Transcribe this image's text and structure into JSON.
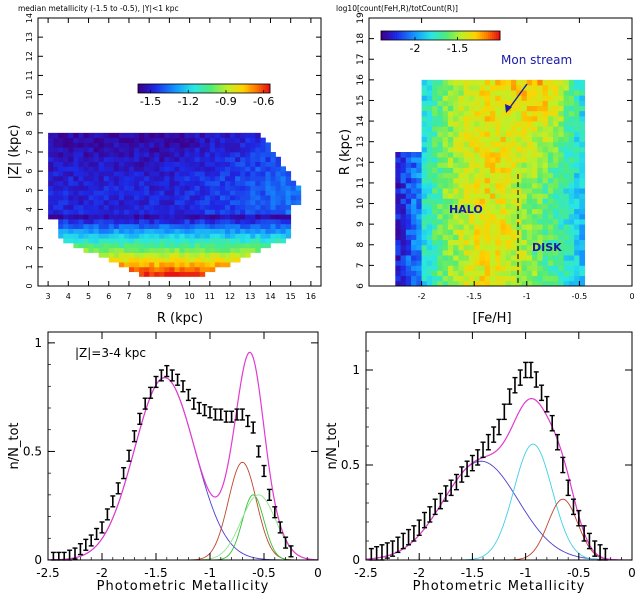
{
  "chart_data": [
    {
      "type": "heatmap",
      "title": "median metallicity (-1.5 to -0.5), |Y|<1 kpc",
      "xlabel": "R (kpc)",
      "ylabel": "|Z| (kpc)",
      "xlim": [
        2.5,
        16.5
      ],
      "ylim": [
        0,
        14
      ],
      "xticks": [
        "3",
        "4",
        "5",
        "6",
        "7",
        "8",
        "9",
        "10",
        "11",
        "12",
        "13",
        "14",
        "15",
        "16"
      ],
      "yticks": [
        "0",
        "1",
        "2",
        "3",
        "4",
        "5",
        "6",
        "7",
        "8",
        "9",
        "10",
        "11",
        "12",
        "13",
        "14"
      ],
      "colorbar": {
        "range": [
          -1.6,
          -0.55
        ],
        "ticks": [
          "-1.5",
          "-1.2",
          "-0.9",
          "-0.6"
        ]
      },
      "grid": false
    },
    {
      "type": "heatmap",
      "title": "log10[count(FeH,R)/totCount(R)]",
      "xlabel": "[Fe/H]",
      "ylabel": "R (kpc)",
      "xlim": [
        -2.5,
        0
      ],
      "ylim": [
        6,
        19
      ],
      "xticks": [
        "-2",
        "-1.5",
        "-1",
        "-0.5",
        "0"
      ],
      "yticks": [
        "6",
        "7",
        "8",
        "9",
        "10",
        "11",
        "12",
        "13",
        "14",
        "15",
        "16",
        "17",
        "18",
        "19"
      ],
      "colorbar": {
        "range": [
          -2.4,
          -1.0
        ],
        "ticks": [
          "-2",
          "-1.5"
        ]
      },
      "annotations": [
        "Mon stream",
        "HALO",
        "DISK"
      ],
      "grid": false
    },
    {
      "type": "line",
      "annotation": "|Z|=3-4 kpc",
      "xlabel": "Photometric Metallicity",
      "ylabel": "n/N_tot",
      "xlim": [
        -2.5,
        0
      ],
      "ylim": [
        0,
        1.05
      ],
      "xticks": [
        "-2.5",
        "-2",
        "-1.5",
        "-1",
        "-0.5",
        "0"
      ],
      "yticks": [
        "0",
        "0.5",
        "1"
      ],
      "x": [
        -2.45,
        -2.4,
        -2.35,
        -2.3,
        -2.25,
        -2.2,
        -2.15,
        -2.1,
        -2.05,
        -2.0,
        -1.95,
        -1.9,
        -1.85,
        -1.8,
        -1.75,
        -1.7,
        -1.65,
        -1.6,
        -1.55,
        -1.5,
        -1.45,
        -1.4,
        -1.35,
        -1.3,
        -1.25,
        -1.2,
        -1.15,
        -1.1,
        -1.05,
        -1.0,
        -0.95,
        -0.9,
        -0.85,
        -0.8,
        -0.75,
        -0.7,
        -0.65,
        -0.6,
        -0.55,
        -0.5,
        -0.45,
        -0.4,
        -0.35,
        -0.3,
        -0.25
      ],
      "series": [
        {
          "values": [
            0.01,
            0.01,
            0.01,
            0.02,
            0.03,
            0.05,
            0.07,
            0.09,
            0.12,
            0.15,
            0.21,
            0.27,
            0.33,
            0.4,
            0.48,
            0.57,
            0.65,
            0.72,
            0.77,
            0.82,
            0.85,
            0.87,
            0.85,
            0.83,
            0.8,
            0.76,
            0.72,
            0.7,
            0.69,
            0.68,
            0.67,
            0.67,
            0.66,
            0.66,
            0.67,
            0.67,
            0.64,
            0.61,
            0.5,
            0.41,
            0.3,
            0.22,
            0.15,
            0.08,
            0.04
          ],
          "errors": 0.025
        }
      ],
      "components": [
        {
          "mu": -1.42,
          "sigma": 0.28,
          "amp": 0.84
        },
        {
          "mu": -0.7,
          "sigma": 0.13,
          "amp": 0.45
        },
        {
          "mu": -0.6,
          "sigma": 0.1,
          "amp": 0.3
        },
        {
          "mu": -0.55,
          "sigma": 0.16,
          "amp": 0.3
        }
      ]
    },
    {
      "type": "line",
      "xlabel": "Photometric Metallicity",
      "ylabel": "n/N_tot",
      "xlim": [
        -2.5,
        0
      ],
      "ylim": [
        0,
        1.2
      ],
      "xticks": [
        "-2.5",
        "-2",
        "-1.5",
        "-1",
        "-0.5",
        "0"
      ],
      "yticks": [
        "0",
        "0.5",
        "1"
      ],
      "x": [
        -2.45,
        -2.4,
        -2.35,
        -2.3,
        -2.25,
        -2.2,
        -2.15,
        -2.1,
        -2.05,
        -2.0,
        -1.95,
        -1.9,
        -1.85,
        -1.8,
        -1.75,
        -1.7,
        -1.65,
        -1.6,
        -1.55,
        -1.5,
        -1.45,
        -1.4,
        -1.35,
        -1.3,
        -1.25,
        -1.2,
        -1.15,
        -1.1,
        -1.05,
        -1.0,
        -0.95,
        -0.9,
        -0.85,
        -0.8,
        -0.75,
        -0.7,
        -0.65,
        -0.6,
        -0.55,
        -0.5,
        -0.45,
        -0.4,
        -0.35,
        -0.3,
        -0.25
      ],
      "series": [
        {
          "values": [
            0.02,
            0.03,
            0.04,
            0.05,
            0.06,
            0.08,
            0.1,
            0.12,
            0.14,
            0.17,
            0.21,
            0.24,
            0.28,
            0.31,
            0.35,
            0.38,
            0.41,
            0.45,
            0.48,
            0.51,
            0.54,
            0.58,
            0.62,
            0.66,
            0.7,
            0.78,
            0.86,
            0.92,
            0.96,
            1.0,
            1.0,
            0.95,
            0.88,
            0.82,
            0.72,
            0.62,
            0.5,
            0.38,
            0.28,
            0.22,
            0.14,
            0.1,
            0.06,
            0.04,
            0.02
          ],
          "errors": 0.04
        }
      ],
      "components": [
        {
          "mu": -1.42,
          "sigma": 0.35,
          "amp": 0.52
        },
        {
          "mu": -0.93,
          "sigma": 0.18,
          "amp": 0.61
        },
        {
          "mu": -0.65,
          "sigma": 0.14,
          "amp": 0.32
        }
      ]
    }
  ]
}
